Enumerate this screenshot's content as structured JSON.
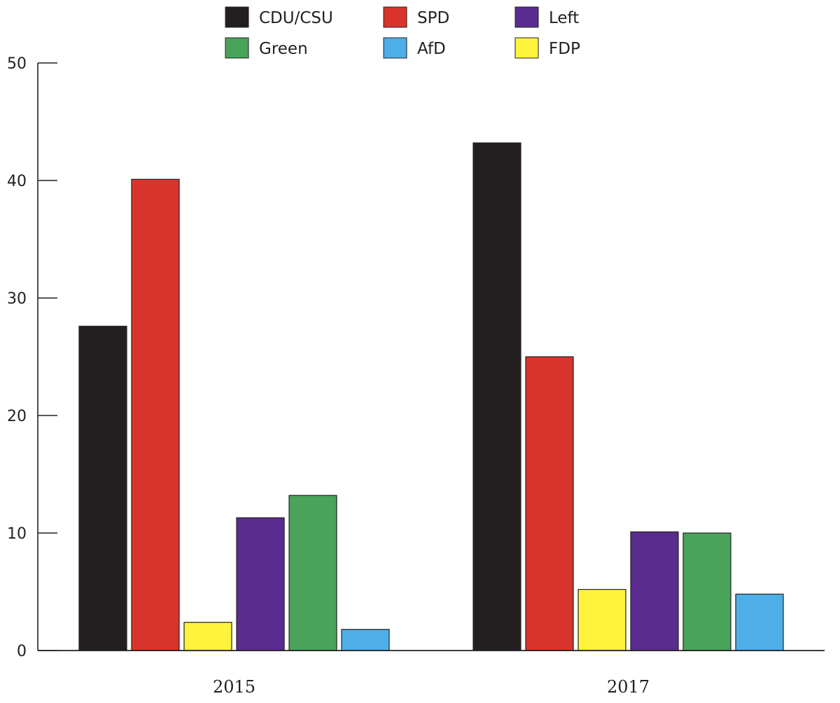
{
  "chart_data": {
    "type": "bar",
    "title": "",
    "xlabel": "",
    "ylabel": "",
    "categories": [
      "2015",
      "2017"
    ],
    "ylim": [
      0,
      50
    ],
    "yticks": [
      0,
      10,
      20,
      30,
      40,
      50
    ],
    "grid": false,
    "legend_position": "top",
    "legend_order": [
      "CDU/CSU",
      "SPD",
      "Left",
      "Green",
      "AfD",
      "FDP"
    ],
    "series": [
      {
        "name": "CDU/CSU",
        "color": "#231f20",
        "values": [
          27.6,
          43.2
        ]
      },
      {
        "name": "SPD",
        "color": "#d9342b",
        "values": [
          40.1,
          25.0
        ]
      },
      {
        "name": "FDP",
        "color": "#fff33b",
        "values": [
          2.4,
          5.2
        ]
      },
      {
        "name": "Left",
        "color": "#5b2c8f",
        "values": [
          11.3,
          10.1
        ]
      },
      {
        "name": "Green",
        "color": "#4aa35a",
        "values": [
          13.2,
          10.0
        ]
      },
      {
        "name": "AfD",
        "color": "#4eaee8",
        "values": [
          1.8,
          4.8
        ]
      }
    ]
  }
}
